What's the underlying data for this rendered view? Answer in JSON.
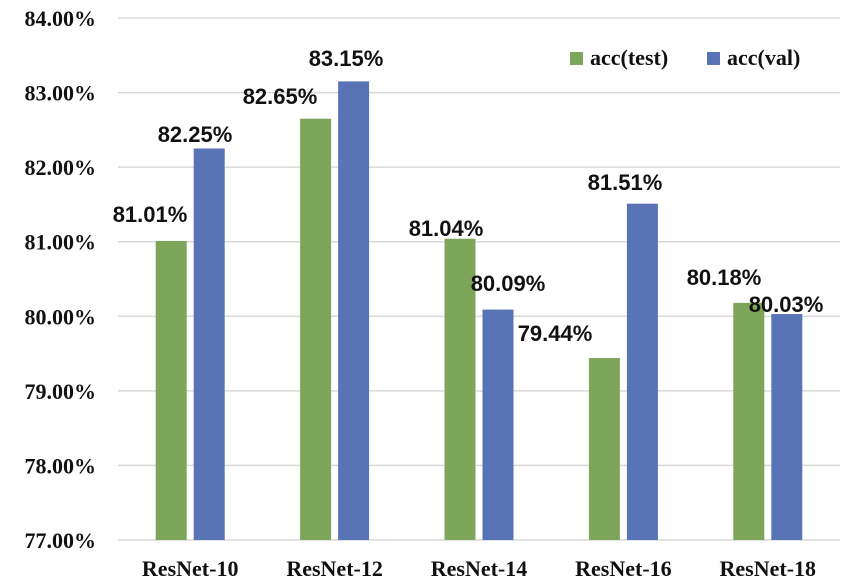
{
  "chart_data": {
    "type": "bar",
    "title": "",
    "xlabel": "",
    "ylabel": "",
    "categories": [
      "ResNet-10",
      "ResNet-12",
      "ResNet-14",
      "ResNet-16",
      "ResNet-18"
    ],
    "series": [
      {
        "name": "acc(test)",
        "color": "#7ea65a",
        "values": [
          81.01,
          82.65,
          81.04,
          79.44,
          80.18
        ],
        "labels": [
          "81.01%",
          "82.65%",
          "81.04%",
          "79.44%",
          "80.18%"
        ]
      },
      {
        "name": "acc(val)",
        "color": "#5873b6",
        "values": [
          82.25,
          83.15,
          80.09,
          81.51,
          80.03
        ],
        "labels": [
          "82.25%",
          "83.15%",
          "80.09%",
          "81.51%",
          "80.03%"
        ]
      }
    ],
    "ylim": [
      77,
      84
    ],
    "yticks": [
      77,
      78,
      79,
      80,
      81,
      82,
      83,
      84
    ],
    "ytick_labels": [
      "77.00%",
      "78.00%",
      "79.00%",
      "80.00%",
      "81.00%",
      "82.00%",
      "83.00%",
      "84.00%"
    ],
    "grid": true,
    "legend": "top-right"
  }
}
